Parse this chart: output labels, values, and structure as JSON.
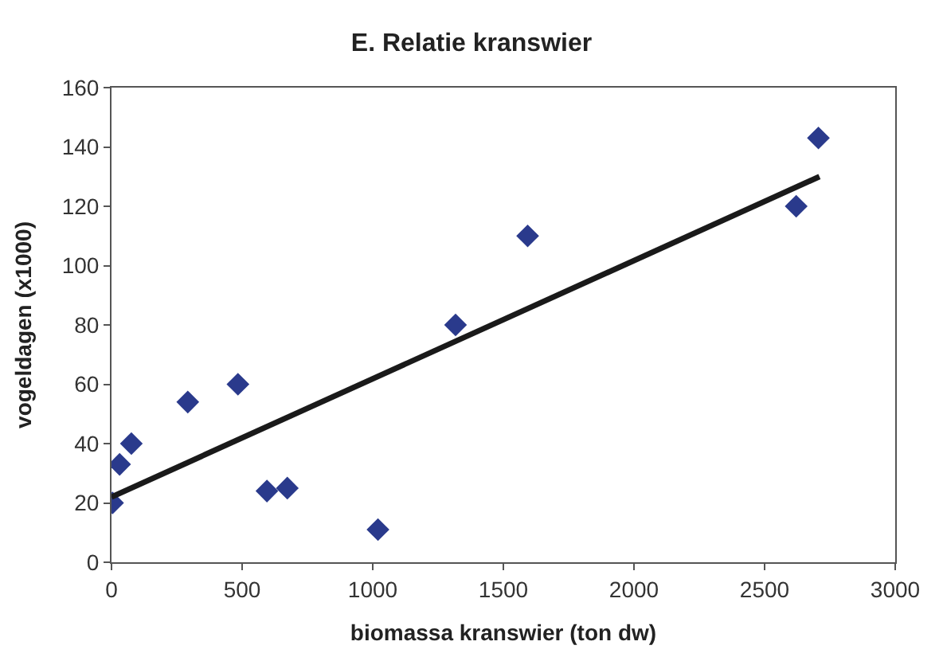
{
  "chart_data": {
    "type": "scatter",
    "title": "E. Relatie kranswier",
    "xlabel": "biomassa kranswier (ton dw)",
    "ylabel": "vogeldagen (x1000)",
    "x": [
      4,
      31,
      76,
      292,
      484,
      595,
      673,
      1020,
      1317,
      1593,
      2621,
      2706
    ],
    "series": [
      {
        "color": "#2a3a8c",
        "marker": "diamond",
        "values": [
          20,
          33,
          40,
          54,
          60,
          24,
          25,
          11,
          80,
          110,
          120,
          143
        ]
      },
      {
        "type": "line",
        "color": "#1a1a1a",
        "x": [
          0,
          2710
        ],
        "values": [
          22,
          130
        ],
        "marker": "none",
        "line_style": "solid"
      }
    ],
    "xlim": [
      0,
      3000
    ],
    "xticks": [
      0,
      500,
      1000,
      1500,
      2000,
      2500,
      3000
    ],
    "ylim": [
      0,
      160
    ],
    "yticks": [
      0,
      20,
      40,
      60,
      80,
      100,
      120,
      140,
      160
    ]
  }
}
